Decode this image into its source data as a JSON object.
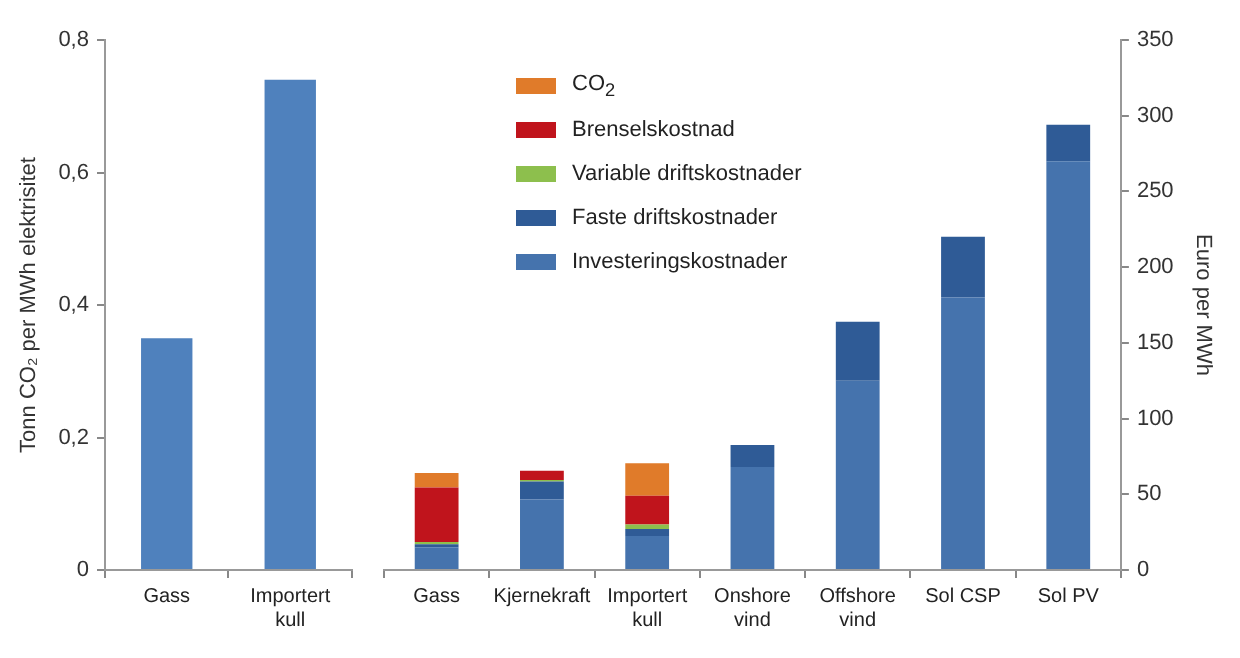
{
  "chart_data": [
    {
      "type": "bar",
      "ylabel": "Tonn CO₂ per MWh elektrisitet",
      "categories": [
        "Gass",
        "Importert\nkull"
      ],
      "values": [
        0.35,
        0.74
      ],
      "color": "#4f81bd",
      "ylim": [
        0,
        0.8
      ],
      "yticks": [
        0,
        {
          "value": 0.2,
          "label": "0,2"
        },
        {
          "value": 0.4,
          "label": "0,4"
        },
        {
          "value": 0.6,
          "label": "0,6"
        },
        {
          "value": 0.8,
          "label": "0,8"
        }
      ],
      "grid": false,
      "legend": false
    },
    {
      "type": "bar",
      "stacked": true,
      "y2label": "Euro per MWh",
      "categories": [
        "Gass",
        "Kjernekraft",
        "Importert\nkull",
        "Onshore\nvind",
        "Offshore\nvind",
        "Sol CSP",
        "Sol PV"
      ],
      "y2lim": [
        0,
        350
      ],
      "y2ticks": [
        0,
        50,
        100,
        150,
        200,
        250,
        300,
        350
      ],
      "grid": false,
      "legend": "top left",
      "series": [
        {
          "name": "Investeringskostnader",
          "color": "#4573ad",
          "axis": "y2",
          "values": [
            15,
            46.5,
            22.5,
            68,
            125,
            180,
            270
          ]
        },
        {
          "name": "Faste driftskostnader",
          "color": "#2f5b96",
          "axis": "y2",
          "values": [
            2,
            12,
            4.5,
            14.5,
            39,
            40,
            24
          ]
        },
        {
          "name": "Variable driftskostnader",
          "color": "#8dbf4d",
          "axis": "y2",
          "values": [
            1.5,
            1,
            3,
            0,
            0,
            0,
            0
          ]
        },
        {
          "name": "Brenselskostnad",
          "color": "#c0141c",
          "axis": "y2",
          "values": [
            36,
            6,
            19,
            0,
            0,
            0,
            0
          ]
        },
        {
          "name": "CO$_{2}$",
          "color": "#e07b2a",
          "axis": "y2",
          "values": [
            9.5,
            0,
            21.5,
            0,
            0,
            0,
            0
          ]
        }
      ]
    }
  ]
}
